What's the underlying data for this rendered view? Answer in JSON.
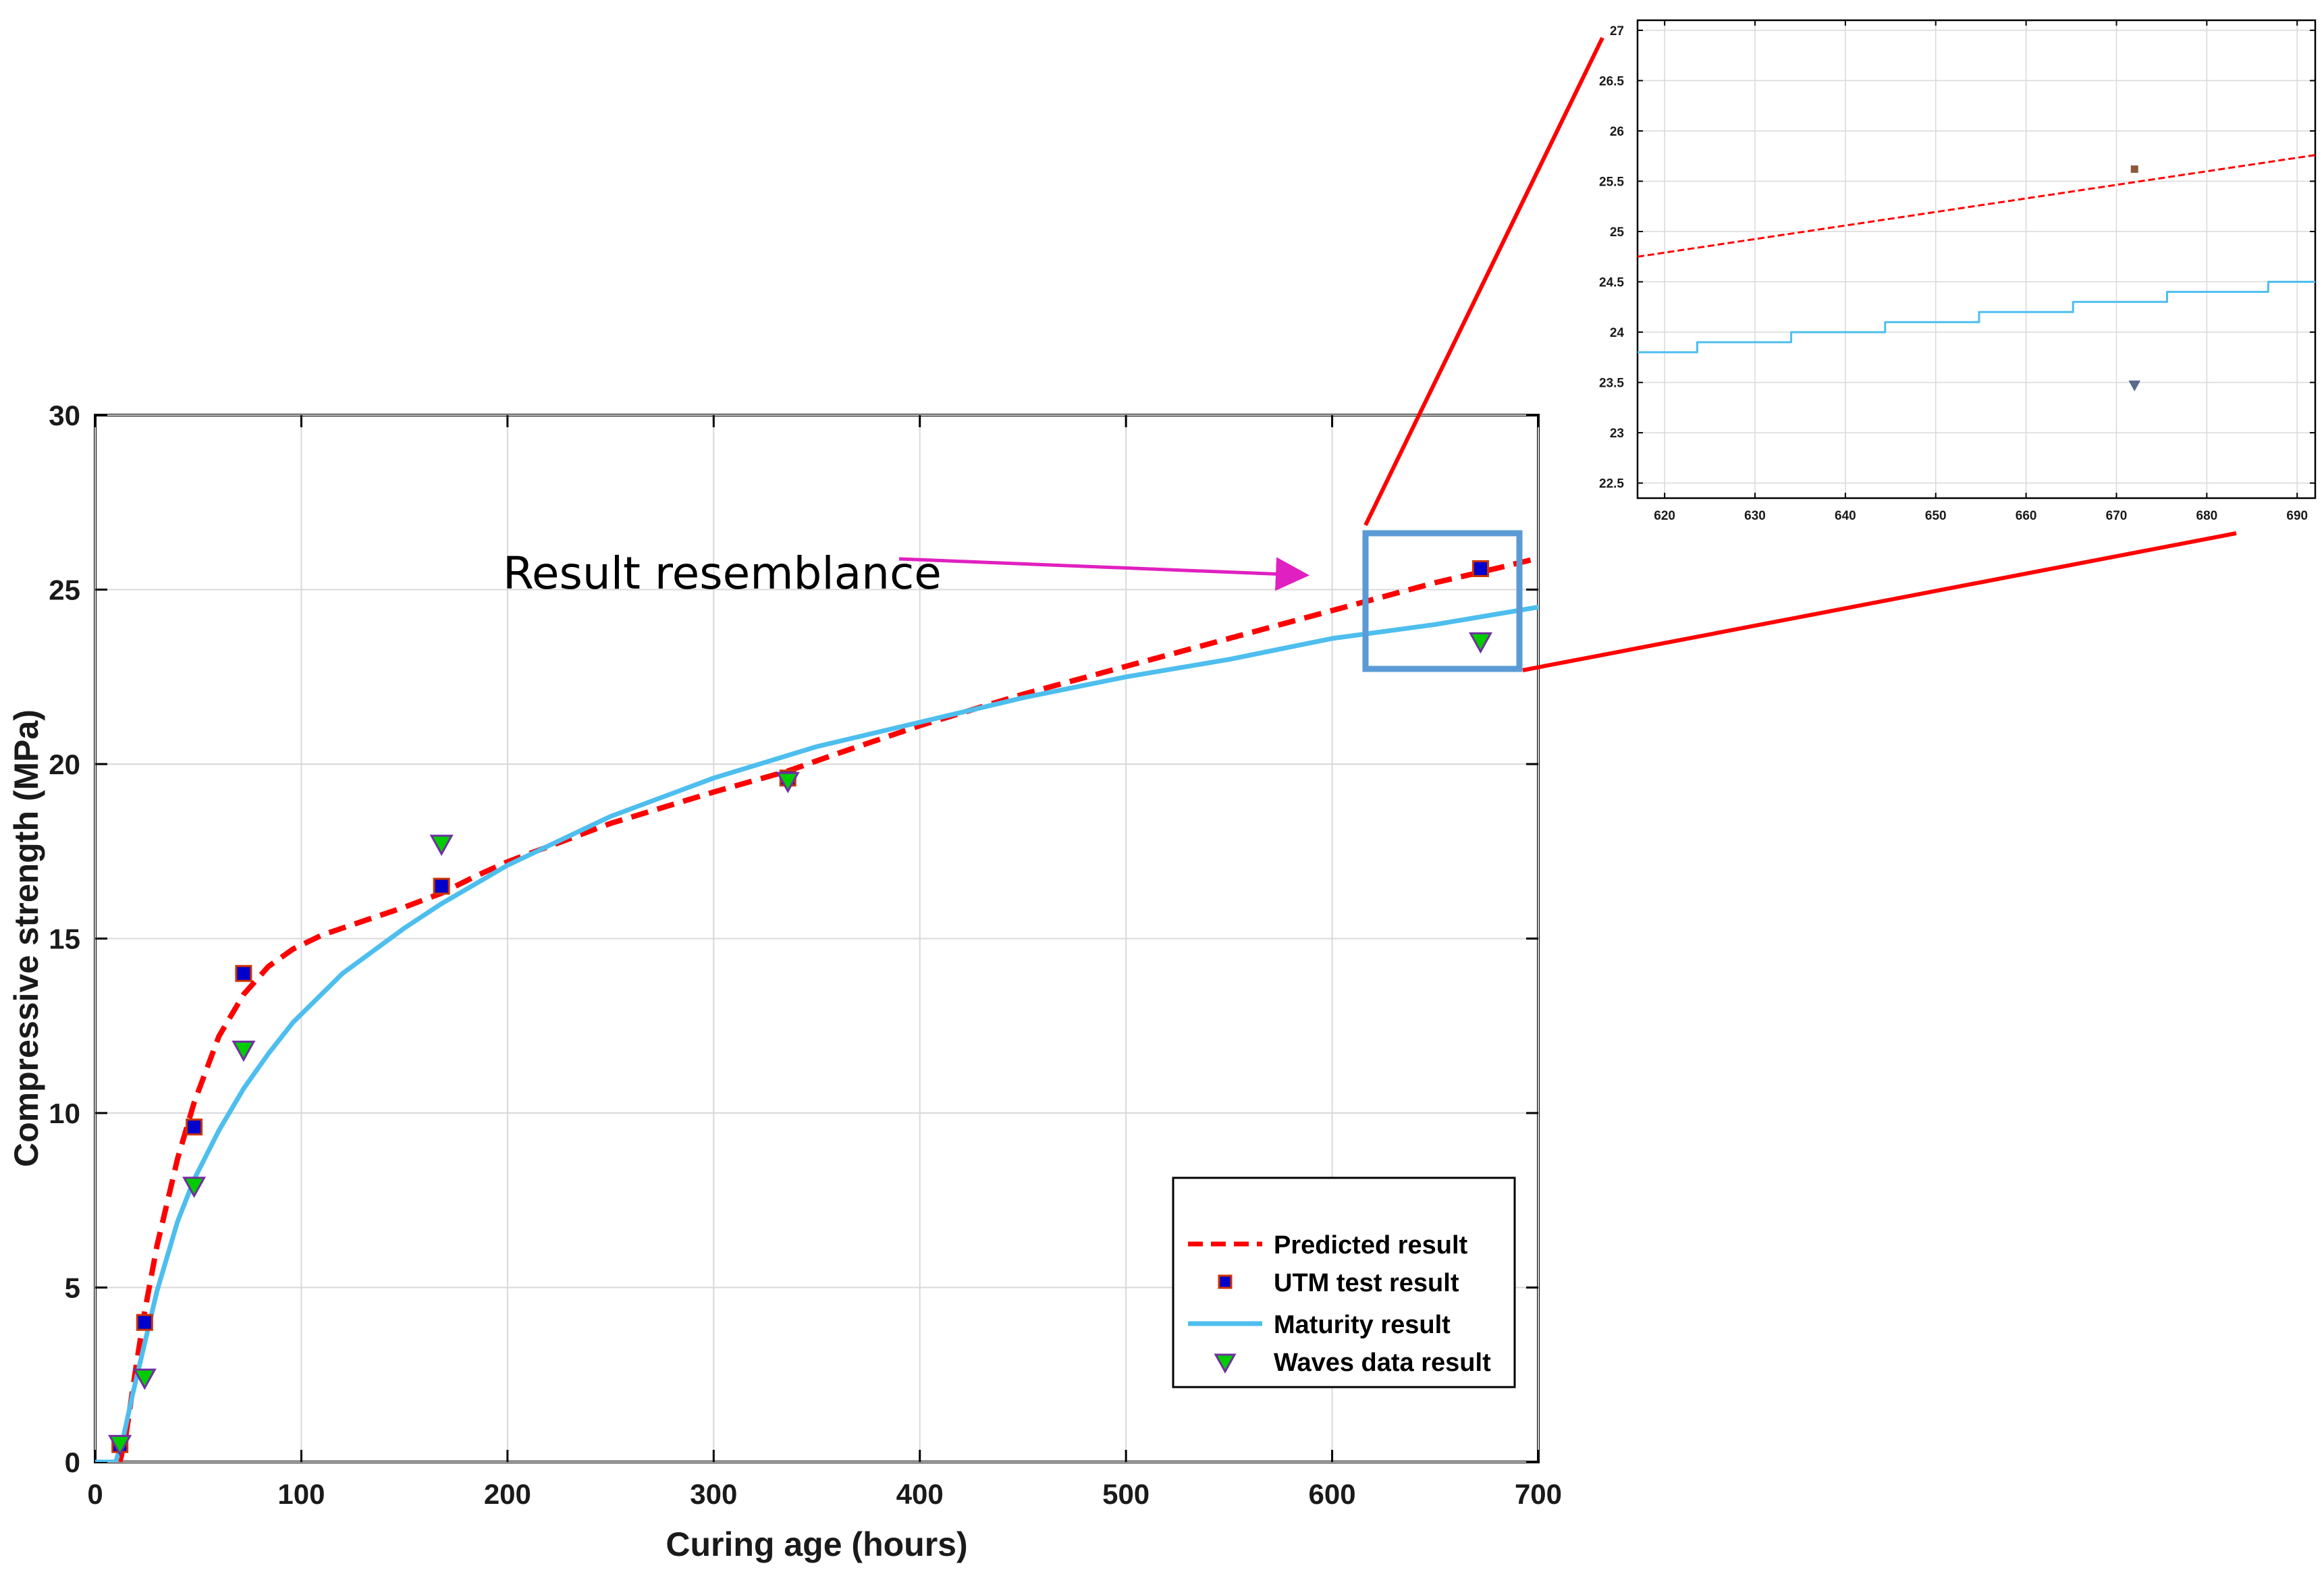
{
  "chart_data": [
    {
      "type": "line",
      "xlabel": "Curing age (hours)",
      "ylabel": "Compressive strength (MPa)",
      "xlim": [
        0,
        700
      ],
      "ylim": [
        0,
        30
      ],
      "xticks": [
        0,
        100,
        200,
        300,
        400,
        500,
        600,
        700
      ],
      "yticks": [
        0,
        5,
        10,
        15,
        20,
        25,
        30
      ],
      "grid": true,
      "legend_position": "bottom-right",
      "series": [
        {
          "name": "Predicted result",
          "style": "dashed-line",
          "color": "#ff0000",
          "x": [
            12,
            15,
            20,
            24,
            30,
            40,
            48,
            60,
            72,
            84,
            96,
            110,
            130,
            150,
            168,
            185,
            200,
            250,
            300,
            336,
            360,
            400,
            450,
            500,
            550,
            600,
            650,
            672,
            700
          ],
          "y": [
            0,
            0.8,
            2.8,
            4.3,
            6.2,
            8.7,
            10.3,
            12.2,
            13.4,
            14.2,
            14.7,
            15.1,
            15.5,
            15.9,
            16.3,
            16.8,
            17.2,
            18.3,
            19.2,
            19.8,
            20.3,
            21.1,
            22.0,
            22.8,
            23.6,
            24.4,
            25.2,
            25.5,
            25.9
          ]
        },
        {
          "name": "UTM test result",
          "style": "square-marker",
          "color": "#0000cc",
          "edge_color": "#cc3300",
          "x": [
            12,
            24,
            48,
            72,
            168,
            336,
            672
          ],
          "y": [
            0.5,
            4.0,
            9.6,
            14.0,
            16.5,
            19.6,
            25.6
          ]
        },
        {
          "name": "Maturity result",
          "style": "solid-line",
          "color": "#4dbeee",
          "x": [
            0,
            10,
            14,
            18,
            24,
            30,
            40,
            48,
            60,
            72,
            84,
            96,
            120,
            150,
            168,
            200,
            250,
            300,
            350,
            400,
            450,
            500,
            550,
            600,
            650,
            700
          ],
          "y": [
            0,
            0,
            0.8,
            1.9,
            3.4,
            4.9,
            6.9,
            8.1,
            9.5,
            10.7,
            11.7,
            12.6,
            14.0,
            15.3,
            16.0,
            17.1,
            18.5,
            19.6,
            20.5,
            21.2,
            21.9,
            22.5,
            23.0,
            23.6,
            24.0,
            24.5
          ]
        },
        {
          "name": "Waves data result",
          "style": "triangle-down-marker",
          "color": "#00cc00",
          "edge_color": "#7030a0",
          "x": [
            12,
            24,
            48,
            72,
            168,
            336,
            672
          ],
          "y": [
            0.5,
            2.4,
            7.9,
            11.8,
            17.7,
            19.5,
            23.5
          ]
        }
      ],
      "annotation": "Result resemblance"
    },
    {
      "type": "line",
      "inset": "zoom",
      "xlim": [
        617,
        692
      ],
      "ylim": [
        22.35,
        27.1
      ],
      "xticks": [
        620,
        630,
        640,
        650,
        660,
        670,
        680,
        690
      ],
      "yticks": [
        22.5,
        23,
        23.5,
        24,
        24.5,
        25,
        25.5,
        26,
        26.5,
        27
      ],
      "grid": true,
      "series": [
        {
          "name": "Predicted result",
          "x": [
            617,
            692
          ],
          "y": [
            24.75,
            25.76
          ]
        },
        {
          "name": "UTM test result",
          "x": [
            672
          ],
          "y": [
            25.62
          ]
        },
        {
          "name": "Maturity result",
          "x": [
            617,
            623.6,
            634,
            644.4,
            654.8,
            665.2,
            675.6,
            686.8,
            692
          ],
          "y": [
            23.8,
            23.9,
            24.0,
            24.1,
            24.2,
            24.3,
            24.4,
            24.5,
            24.5
          ]
        },
        {
          "name": "Waves data result",
          "x": [
            672
          ],
          "y": [
            23.47
          ]
        }
      ]
    }
  ]
}
